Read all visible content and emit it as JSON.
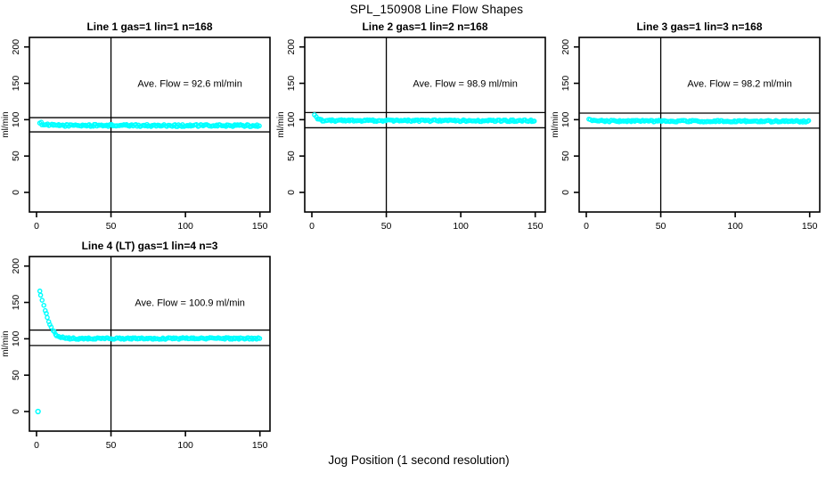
{
  "page": {
    "title": "SPL_150908  Line Flow Shapes",
    "xlabel": "Jog Position (1 second resolution)"
  },
  "colors": {
    "points": "#00FFFF",
    "axis": "#000000",
    "background": "#FFFFFF"
  },
  "chart_data": [
    {
      "type": "scatter",
      "title": "Line 1 gas=1 lin=1 n=168",
      "annotation": "Ave. Flow =  92.6  ml/min",
      "ave_flow_ml_min": 92.6,
      "n": 168,
      "ylabel": "ml/min",
      "x_ticks": [
        0,
        50,
        100,
        150
      ],
      "y_ticks": [
        0,
        50,
        100,
        150,
        200
      ],
      "xlim": [
        -5,
        157
      ],
      "ylim": [
        -27,
        213
      ],
      "vline_x": 50,
      "hlines": [
        102.8,
        83.2
      ],
      "x_start": 2,
      "x_end": 150,
      "x_step": 0.9,
      "jitter": 1.4,
      "profile": [
        [
          2,
          96.5
        ],
        [
          4,
          94.0
        ],
        [
          7,
          92.8
        ],
        [
          12,
          92.2
        ],
        [
          150,
          91.8
        ]
      ],
      "outliers": [],
      "annotation_at": {
        "x": 103,
        "y": 150
      }
    },
    {
      "type": "scatter",
      "title": "Line 2 gas=1 lin=2 n=168",
      "annotation": "Ave. Flow =  98.9  ml/min",
      "ave_flow_ml_min": 98.9,
      "n": 168,
      "ylabel": "ml/min",
      "x_ticks": [
        0,
        50,
        100,
        150
      ],
      "y_ticks": [
        0,
        50,
        100,
        150,
        200
      ],
      "xlim": [
        -5,
        157
      ],
      "ylim": [
        -27,
        213
      ],
      "vline_x": 50,
      "hlines": [
        109.8,
        88.9
      ],
      "x_start": 2,
      "x_end": 150,
      "x_step": 0.9,
      "jitter": 1.2,
      "profile": [
        [
          2,
          107.0
        ],
        [
          3,
          103.5
        ],
        [
          4,
          100.5
        ],
        [
          6,
          99.2
        ],
        [
          12,
          98.8
        ],
        [
          150,
          98.5
        ]
      ],
      "outliers": [],
      "annotation_at": {
        "x": 103,
        "y": 150
      }
    },
    {
      "type": "scatter",
      "title": "Line 3 gas=1 lin=3 n=168",
      "annotation": "Ave. Flow =  98.2  ml/min",
      "ave_flow_ml_min": 98.2,
      "n": 168,
      "ylabel": "ml/min",
      "x_ticks": [
        0,
        50,
        100,
        150
      ],
      "y_ticks": [
        0,
        50,
        100,
        150,
        200
      ],
      "xlim": [
        -5,
        157
      ],
      "ylim": [
        -27,
        213
      ],
      "vline_x": 50,
      "hlines": [
        109.0,
        88.3
      ],
      "x_start": 2,
      "x_end": 150,
      "x_step": 0.9,
      "jitter": 1.1,
      "profile": [
        [
          2,
          100.0
        ],
        [
          3,
          99.0
        ],
        [
          6,
          98.2
        ],
        [
          150,
          97.7
        ]
      ],
      "outliers": [],
      "annotation_at": {
        "x": 103,
        "y": 150
      }
    },
    {
      "type": "scatter",
      "title": "Line 4 (LT) gas=1 lin=4 n=3",
      "annotation": "Ave. Flow =  100.9  ml/min",
      "ave_flow_ml_min": 100.9,
      "n": 3,
      "ylabel": "ml/min",
      "x_ticks": [
        0,
        50,
        100,
        150
      ],
      "y_ticks": [
        0,
        50,
        100,
        150,
        200
      ],
      "xlim": [
        -5,
        157
      ],
      "ylim": [
        -27,
        213
      ],
      "vline_x": 50,
      "hlines": [
        112.0,
        90.8
      ],
      "x_start": 2,
      "x_end": 150,
      "x_step": 0.9,
      "jitter": 1.1,
      "profile": [
        [
          2,
          166
        ],
        [
          3,
          159
        ],
        [
          4,
          151
        ],
        [
          5,
          144
        ],
        [
          6,
          137
        ],
        [
          7,
          131
        ],
        [
          8,
          125
        ],
        [
          9,
          120
        ],
        [
          10,
          115.5
        ],
        [
          11,
          111.5
        ],
        [
          12,
          108.5
        ],
        [
          13,
          106
        ],
        [
          14,
          104.2
        ],
        [
          15,
          103
        ],
        [
          16,
          102.2
        ],
        [
          18,
          101.3
        ],
        [
          21,
          100.6
        ],
        [
          26,
          100.2
        ],
        [
          150,
          100.6
        ]
      ],
      "outliers": [
        [
          1,
          0
        ]
      ],
      "annotation_at": {
        "x": 103,
        "y": 150
      }
    }
  ]
}
